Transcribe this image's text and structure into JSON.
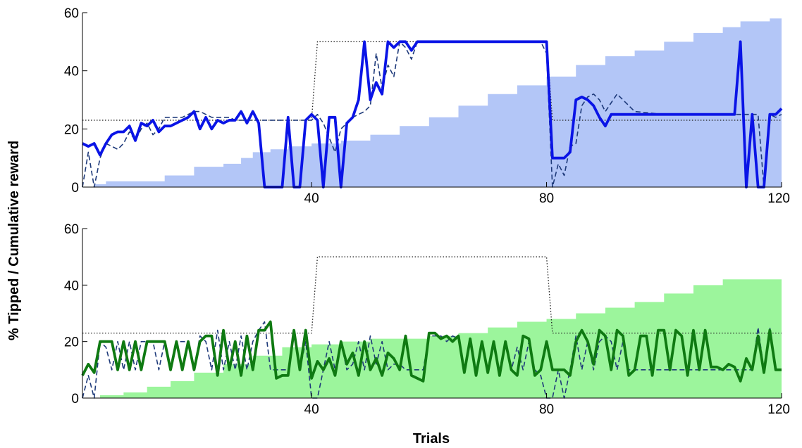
{
  "chart_data": {
    "type": "line",
    "xlabel": "Trials",
    "ylabel": "% Tipped / Cumulative reward",
    "xlim": [
      1,
      120
    ],
    "ylim": [
      0,
      60
    ],
    "xticks": [
      40,
      80,
      120
    ],
    "yticks": [
      0,
      20,
      40,
      60
    ],
    "grid": false,
    "panels": [
      {
        "id": "top",
        "colors": {
          "area": "#b3c6f7",
          "solid": "#0a14e6",
          "dashed": "#1e3a7a",
          "dotted": "#222222"
        },
        "area": {
          "x": [
            1,
            3,
            5,
            10,
            15,
            20,
            25,
            28,
            30,
            33,
            36,
            40,
            45,
            50,
            55,
            60,
            65,
            70,
            75,
            80,
            85,
            90,
            95,
            100,
            105,
            110,
            113,
            115,
            118,
            120
          ],
          "y": [
            0,
            1,
            2,
            2,
            4,
            7,
            8,
            10,
            12,
            13,
            14,
            15,
            16,
            18,
            21,
            24,
            28,
            32,
            35,
            38,
            42,
            45,
            47,
            50,
            53,
            55,
            57,
            57,
            58,
            58
          ]
        },
        "reference": {
          "x": [
            1,
            40,
            41,
            80,
            81,
            120
          ],
          "y": [
            23,
            23,
            50,
            50,
            23,
            23
          ]
        },
        "dashed": {
          "x": [
            1,
            2,
            3,
            4,
            5,
            6,
            7,
            8,
            9,
            10,
            11,
            12,
            13,
            14,
            15,
            16,
            17,
            18,
            19,
            20,
            21,
            22,
            23,
            24,
            25,
            26,
            27,
            28,
            29,
            30,
            31,
            32,
            33,
            34,
            35,
            36,
            37,
            38,
            39,
            40,
            41,
            42,
            43,
            44,
            45,
            46,
            47,
            48,
            49,
            50,
            51,
            52,
            53,
            54,
            55,
            56,
            57,
            58,
            60,
            70,
            79,
            80,
            81,
            82,
            83,
            84,
            85,
            86,
            87,
            88,
            89,
            90,
            91,
            92,
            93,
            94,
            95,
            100,
            105,
            110,
            112,
            113,
            114,
            115,
            116,
            117,
            118,
            119,
            120
          ],
          "y": [
            0,
            12,
            0,
            10,
            15,
            14,
            13,
            15,
            19,
            16,
            20,
            22,
            18,
            20,
            24,
            24,
            24,
            24,
            25,
            26,
            26,
            25,
            24,
            24,
            24,
            24,
            23,
            23,
            23,
            23,
            23,
            23,
            23,
            23,
            23,
            23,
            23,
            23,
            23,
            23,
            25,
            22,
            17,
            12,
            20,
            22,
            24,
            25,
            26,
            28,
            46,
            34,
            42,
            38,
            50,
            48,
            44,
            50,
            50,
            50,
            50,
            46,
            0,
            8,
            4,
            14,
            15,
            28,
            31,
            32,
            30,
            26,
            29,
            32,
            30,
            28,
            26,
            25,
            25,
            25,
            25,
            25,
            25,
            25,
            25,
            0,
            25,
            24,
            25
          ]
        },
        "solid": {
          "x": [
            1,
            2,
            3,
            4,
            5,
            6,
            7,
            8,
            9,
            10,
            11,
            12,
            13,
            14,
            15,
            16,
            17,
            18,
            19,
            20,
            21,
            22,
            23,
            24,
            25,
            26,
            27,
            28,
            29,
            30,
            31,
            32,
            33,
            34,
            35,
            36,
            37,
            38,
            39,
            40,
            41,
            42,
            43,
            44,
            45,
            46,
            47,
            48,
            49,
            50,
            51,
            52,
            53,
            54,
            55,
            56,
            57,
            58,
            60,
            70,
            80,
            81,
            82,
            83,
            84,
            85,
            86,
            87,
            88,
            89,
            90,
            91,
            92,
            93,
            94,
            100,
            105,
            110,
            112,
            113,
            114,
            115,
            116,
            117,
            118,
            119,
            120
          ],
          "y": [
            15,
            14,
            15,
            11,
            15,
            18,
            19,
            19,
            21,
            16,
            22,
            21,
            23,
            19,
            21,
            21,
            22,
            23,
            24,
            26,
            20,
            24,
            20,
            23,
            22,
            23,
            23,
            26,
            22,
            26,
            22,
            0,
            0,
            0,
            0,
            24,
            0,
            0,
            23,
            25,
            23,
            0,
            24,
            24,
            0,
            22,
            24,
            30,
            50,
            30,
            36,
            32,
            50,
            48,
            50,
            50,
            47,
            50,
            50,
            50,
            50,
            10,
            10,
            10,
            12,
            30,
            31,
            30,
            28,
            24,
            21,
            25,
            25,
            25,
            25,
            25,
            25,
            25,
            25,
            50,
            0,
            25,
            0,
            0,
            25,
            25,
            27
          ]
        }
      },
      {
        "id": "bottom",
        "colors": {
          "area": "#9cf59c",
          "solid": "#0f7a12",
          "dashed": "#1e3a7a",
          "dotted": "#222222"
        },
        "area": {
          "x": [
            1,
            4,
            8,
            12,
            16,
            20,
            25,
            30,
            35,
            40,
            45,
            50,
            55,
            60,
            65,
            70,
            75,
            80,
            85,
            90,
            95,
            100,
            105,
            110,
            115,
            120
          ],
          "y": [
            0,
            1,
            2,
            4,
            6,
            9,
            12,
            15,
            18,
            19,
            20,
            21,
            21,
            22,
            23,
            25,
            27,
            28,
            30,
            32,
            34,
            37,
            40,
            42,
            42,
            42
          ]
        },
        "reference": {
          "x": [
            1,
            40,
            41,
            80,
            81,
            120
          ],
          "y": [
            23,
            23,
            50,
            50,
            23,
            23
          ]
        },
        "dashed": {
          "x": [
            1,
            2,
            3,
            4,
            5,
            6,
            7,
            8,
            9,
            10,
            11,
            12,
            13,
            14,
            15,
            16,
            17,
            18,
            19,
            20,
            21,
            22,
            23,
            24,
            25,
            26,
            27,
            28,
            29,
            30,
            31,
            32,
            33,
            34,
            35,
            36,
            37,
            38,
            39,
            40,
            41,
            42,
            43,
            44,
            45,
            46,
            47,
            48,
            49,
            50,
            51,
            52,
            53,
            54,
            55,
            56,
            57,
            58,
            59,
            60,
            61,
            62,
            63,
            64,
            65,
            66,
            67,
            68,
            69,
            70,
            71,
            72,
            73,
            74,
            75,
            76,
            77,
            78,
            79,
            80,
            81,
            82,
            83,
            84,
            85,
            86,
            87,
            88,
            89,
            90,
            91,
            92,
            93,
            94,
            95,
            96,
            97,
            98,
            99,
            100,
            101,
            102,
            103,
            104,
            105,
            106,
            107,
            108,
            109,
            110,
            111,
            112,
            113,
            114,
            115,
            116,
            117,
            118,
            119,
            120
          ],
          "y": [
            0,
            8,
            0,
            20,
            18,
            10,
            20,
            10,
            20,
            10,
            20,
            20,
            20,
            10,
            20,
            10,
            20,
            20,
            20,
            10,
            22,
            20,
            10,
            24,
            10,
            20,
            10,
            22,
            10,
            20,
            24,
            27,
            10,
            10,
            10,
            10,
            22,
            10,
            20,
            0,
            0,
            10,
            20,
            10,
            20,
            10,
            12,
            20,
            10,
            22,
            12,
            20,
            10,
            12,
            12,
            10,
            10,
            10,
            10,
            22,
            22,
            22,
            20,
            22,
            21,
            10,
            20,
            10,
            20,
            10,
            18,
            10,
            20,
            10,
            18,
            10,
            20,
            10,
            8,
            0,
            0,
            10,
            0,
            10,
            22,
            10,
            20,
            10,
            20,
            22,
            20,
            10,
            20,
            10,
            10,
            10,
            10,
            10,
            10,
            10,
            10,
            10,
            10,
            10,
            10,
            10,
            10,
            10,
            10,
            10,
            10,
            10,
            10,
            10,
            10,
            25,
            10,
            25,
            10,
            10
          ]
        },
        "solid": {
          "x": [
            1,
            2,
            3,
            4,
            5,
            6,
            7,
            8,
            9,
            10,
            11,
            12,
            13,
            14,
            15,
            16,
            17,
            18,
            19,
            20,
            21,
            22,
            23,
            24,
            25,
            26,
            27,
            28,
            29,
            30,
            31,
            32,
            33,
            34,
            35,
            36,
            37,
            38,
            39,
            40,
            41,
            42,
            43,
            44,
            45,
            46,
            47,
            48,
            49,
            50,
            51,
            52,
            53,
            54,
            55,
            56,
            57,
            58,
            59,
            60,
            61,
            62,
            63,
            64,
            65,
            66,
            67,
            68,
            69,
            70,
            71,
            72,
            73,
            74,
            75,
            76,
            77,
            78,
            79,
            80,
            81,
            82,
            83,
            84,
            85,
            86,
            87,
            88,
            89,
            90,
            91,
            92,
            93,
            94,
            95,
            96,
            97,
            98,
            99,
            100,
            101,
            102,
            103,
            104,
            105,
            106,
            107,
            108,
            109,
            110,
            111,
            112,
            113,
            114,
            115,
            116,
            117,
            118,
            119,
            120
          ],
          "y": [
            8,
            12,
            9,
            20,
            20,
            20,
            10,
            20,
            10,
            20,
            10,
            20,
            20,
            20,
            20,
            10,
            20,
            10,
            20,
            10,
            20,
            22,
            22,
            8,
            24,
            10,
            20,
            8,
            22,
            10,
            24,
            24,
            27,
            7,
            8,
            8,
            24,
            10,
            24,
            7,
            13,
            10,
            14,
            8,
            20,
            12,
            16,
            8,
            20,
            10,
            14,
            8,
            16,
            14,
            10,
            22,
            8,
            7,
            6,
            23,
            23,
            21,
            22,
            20,
            22,
            9,
            21,
            8,
            20,
            9,
            20,
            8,
            20,
            10,
            8,
            22,
            21,
            8,
            10,
            20,
            10,
            10,
            10,
            8,
            20,
            24,
            20,
            12,
            24,
            22,
            10,
            24,
            22,
            8,
            10,
            22,
            22,
            8,
            24,
            24,
            10,
            24,
            22,
            8,
            24,
            10,
            24,
            11,
            11,
            10,
            12,
            11,
            6,
            14,
            10,
            22,
            9,
            24,
            10,
            10
          ]
        }
      }
    ]
  }
}
